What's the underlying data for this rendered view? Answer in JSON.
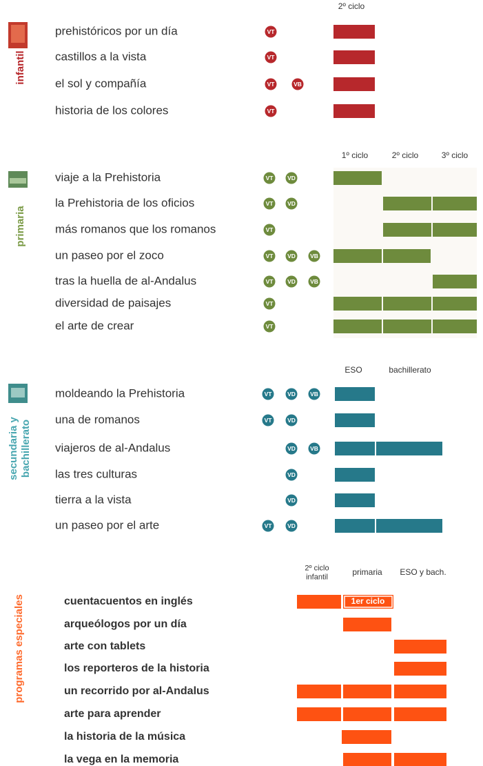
{
  "sections": [
    {
      "label": [
        "infantil"
      ],
      "columns": [
        [
          "2º ciclo"
        ]
      ],
      "rows": [
        {
          "name": "prehistóricos por un día",
          "badges": [
            "VT"
          ]
        },
        {
          "name": "castillos a la vista",
          "badges": [
            "VT"
          ]
        },
        {
          "name": "el sol y compañía",
          "badges": [
            "VT",
            "VB"
          ]
        },
        {
          "name": "historia de los colores",
          "badges": [
            "VT"
          ]
        }
      ]
    },
    {
      "label": [
        "primaria"
      ],
      "columns": [
        [
          "1º ciclo"
        ],
        [
          "2º ciclo"
        ],
        [
          "3º ciclo"
        ]
      ],
      "rows": [
        {
          "name": "viaje a la Prehistoria",
          "badges": [
            "VT",
            "VD"
          ]
        },
        {
          "name": "la Prehistoria de los oficios",
          "badges": [
            "VT",
            "VD"
          ]
        },
        {
          "name": "más romanos que los romanos",
          "badges": [
            "VT"
          ]
        },
        {
          "name": "un paseo por el zoco",
          "badges": [
            "VT",
            "VD",
            "VB"
          ]
        },
        {
          "name": "tras la huella de al-Andalus",
          "badges": [
            "VT",
            "VD",
            "VB"
          ]
        },
        {
          "name": "diversidad de paisajes",
          "badges": [
            "VT"
          ]
        },
        {
          "name": "el arte de crear",
          "badges": [
            "VT"
          ]
        }
      ]
    },
    {
      "label": [
        "secundaria y",
        "bachillerato"
      ],
      "columns": [
        [
          "ESO"
        ],
        [
          "bachillerato"
        ]
      ],
      "rows": [
        {
          "name": "moldeando la Prehistoria",
          "badges": [
            "VT",
            "VD",
            "VB"
          ]
        },
        {
          "name": "una de romanos",
          "badges": [
            "VT",
            "VD"
          ]
        },
        {
          "name": "viajeros de al-Andalus",
          "badges": [
            "VD",
            "VB"
          ]
        },
        {
          "name": "las tres culturas",
          "badges": [
            "VD"
          ]
        },
        {
          "name": "tierra a la vista",
          "badges": [
            "VD"
          ]
        },
        {
          "name": "un paseo por el arte",
          "badges": [
            "VT",
            "VD"
          ]
        }
      ]
    },
    {
      "label": [
        "programas especiales"
      ],
      "columns": [
        [
          "2º ciclo",
          "infantil"
        ],
        [
          "primaria"
        ],
        [
          "ESO y bach."
        ]
      ],
      "bar_label": "1er ciclo",
      "rows": [
        {
          "name": "cuentacuentos en inglés"
        },
        {
          "name": "arqueólogos por un día"
        },
        {
          "name": "arte con tablets"
        },
        {
          "name": "los reporteros de la historia"
        },
        {
          "name": "un recorrido por al-Andalus"
        },
        {
          "name": "arte para aprender"
        },
        {
          "name": "la historia de la música"
        },
        {
          "name": "la vega en la memoria"
        }
      ]
    }
  ]
}
